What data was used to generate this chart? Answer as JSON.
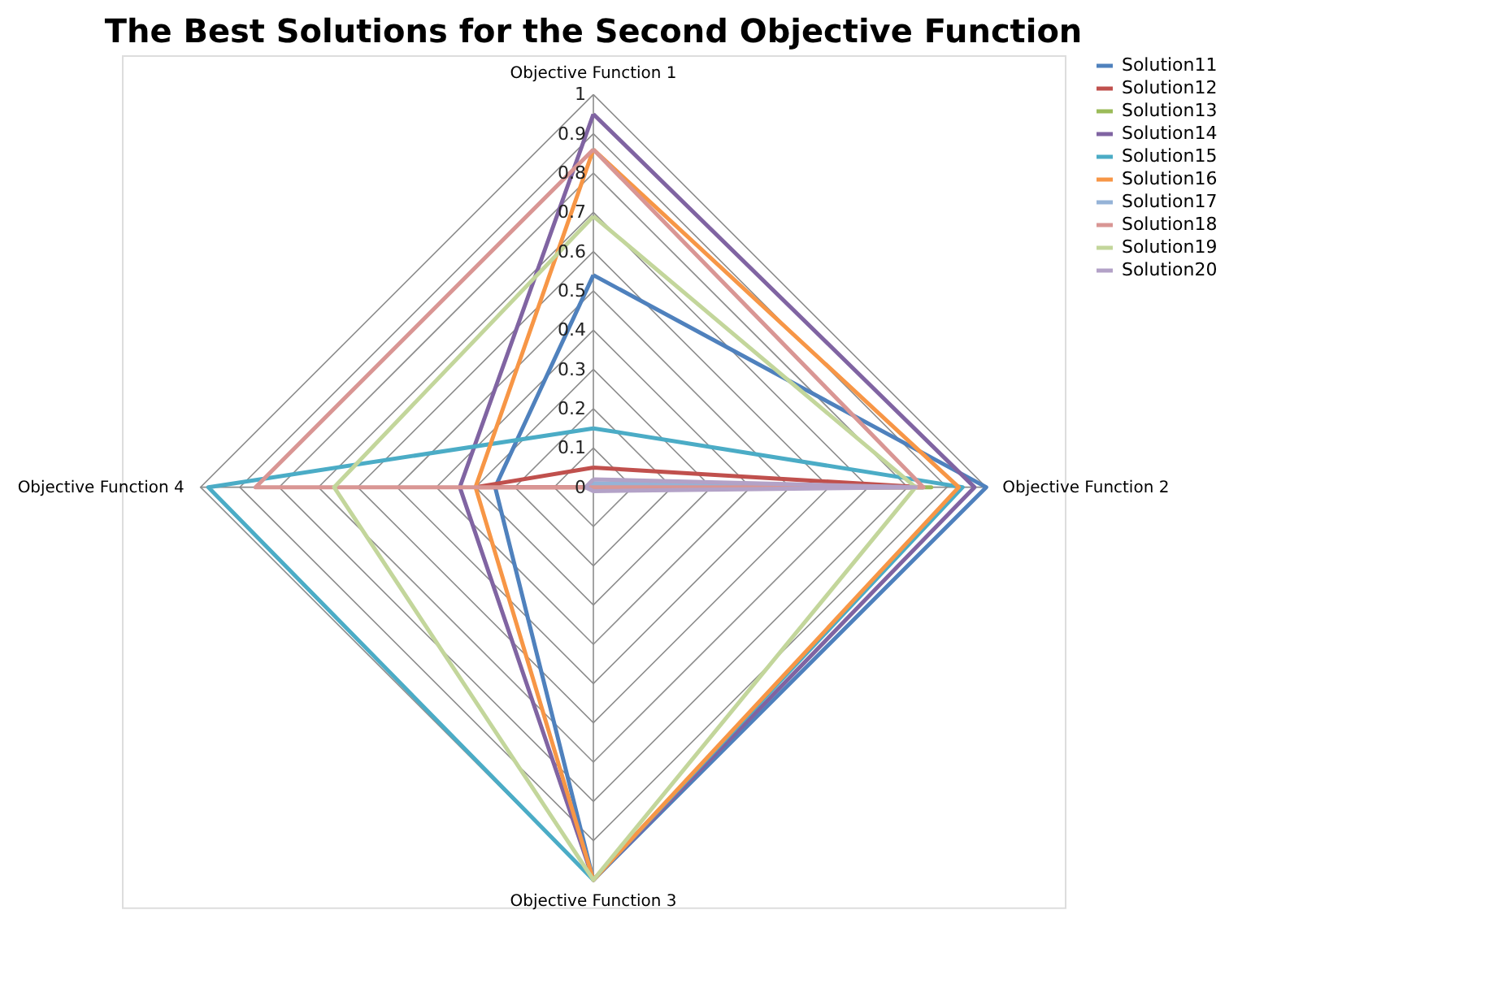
{
  "chart_data": {
    "type": "radar",
    "title": "The Best Solutions for the Second Objective Function",
    "categories": [
      "Objective Function 1",
      "Objective Function 2",
      "Objective Function 3",
      "Objective Function 4"
    ],
    "ylim": [
      0,
      1
    ],
    "yticks": [
      0,
      0.1,
      0.2,
      0.3,
      0.4,
      0.5,
      0.6,
      0.7,
      0.8,
      0.9,
      1
    ],
    "grid": true,
    "legend": "right",
    "series": [
      {
        "name": "Solution11",
        "color": "#4f81bd",
        "values": [
          0.54,
          1.0,
          1.0,
          0.25
        ]
      },
      {
        "name": "Solution12",
        "color": "#c0504d",
        "values": [
          0.05,
          0.84,
          0,
          0.3
        ]
      },
      {
        "name": "Solution13",
        "color": "#9bbb59",
        "values": [
          0,
          0.86,
          0,
          0
        ]
      },
      {
        "name": "Solution14",
        "color": "#8064a2",
        "values": [
          0.95,
          0.97,
          1.0,
          0.34
        ]
      },
      {
        "name": "Solution15",
        "color": "#4bacc6",
        "values": [
          0.15,
          0.94,
          1.0,
          0.98
        ]
      },
      {
        "name": "Solution16",
        "color": "#f79646",
        "values": [
          0.86,
          0.93,
          1.0,
          0.3
        ]
      },
      {
        "name": "Solution17",
        "color": "#95b3d7",
        "values": [
          0.01,
          0.84,
          0,
          0.01
        ]
      },
      {
        "name": "Solution18",
        "color": "#d99694",
        "values": [
          0.86,
          0.84,
          0,
          0.86
        ]
      },
      {
        "name": "Solution19",
        "color": "#c3d69b",
        "values": [
          0.69,
          0.82,
          1.0,
          0.66
        ]
      },
      {
        "name": "Solution20",
        "color": "#b3a2c7",
        "values": [
          0.02,
          0.82,
          0.01,
          0.02
        ]
      }
    ]
  }
}
